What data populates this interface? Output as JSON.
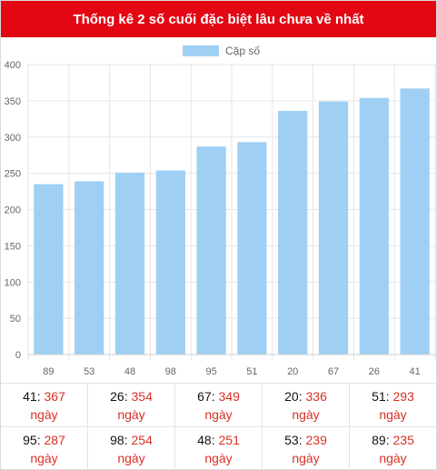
{
  "title": "Thống kê 2 số cuối đặc biệt lâu chưa về nhất",
  "chart_data": {
    "type": "bar",
    "categories": [
      "89",
      "53",
      "48",
      "98",
      "95",
      "51",
      "20",
      "67",
      "26",
      "41"
    ],
    "series": [
      {
        "name": "Cặp số",
        "values": [
          235,
          239,
          251,
          254,
          287,
          293,
          336,
          349,
          354,
          367
        ],
        "color": "#9fd0f4"
      }
    ],
    "ylim": [
      0,
      400
    ],
    "yticks": [
      0,
      50,
      100,
      150,
      200,
      250,
      300,
      350,
      400
    ],
    "grid": true,
    "legend": "top-center"
  },
  "stats": [
    [
      {
        "num": "41",
        "days": "367",
        "unit": "ngày"
      },
      {
        "num": "26",
        "days": "354",
        "unit": "ngày"
      },
      {
        "num": "67",
        "days": "349",
        "unit": "ngày"
      },
      {
        "num": "20",
        "days": "336",
        "unit": "ngày"
      },
      {
        "num": "51",
        "days": "293",
        "unit": "ngày"
      }
    ],
    [
      {
        "num": "95",
        "days": "287",
        "unit": "ngày"
      },
      {
        "num": "98",
        "days": "254",
        "unit": "ngày"
      },
      {
        "num": "48",
        "days": "251",
        "unit": "ngày"
      },
      {
        "num": "53",
        "days": "239",
        "unit": "ngày"
      },
      {
        "num": "89",
        "days": "235",
        "unit": "ngày"
      }
    ]
  ]
}
